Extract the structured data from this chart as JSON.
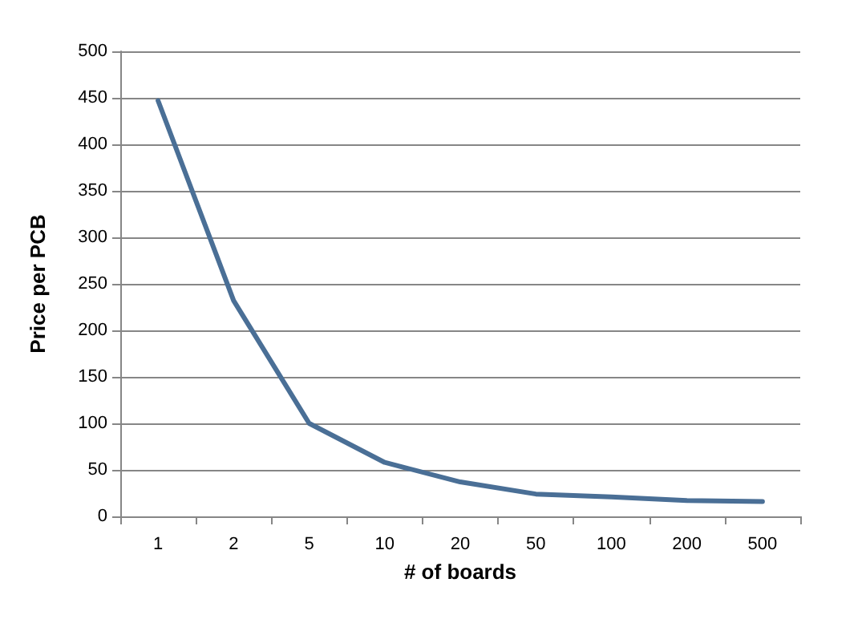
{
  "chart_data": {
    "type": "line",
    "xlabel": "# of boards",
    "ylabel": "Price per PCB",
    "categories": [
      "1",
      "2",
      "5",
      "10",
      "20",
      "50",
      "100",
      "200",
      "500"
    ],
    "series": [
      {
        "color": "#4a6f96",
        "values": [
          447,
          232,
          100,
          58,
          37,
          24,
          21,
          17,
          16
        ]
      }
    ],
    "ylim": [
      0,
      500
    ],
    "yticks": [
      0,
      50,
      100,
      150,
      200,
      250,
      300,
      350,
      400,
      450,
      500
    ],
    "grid": "y",
    "marker": "none",
    "line_style": "solid"
  }
}
